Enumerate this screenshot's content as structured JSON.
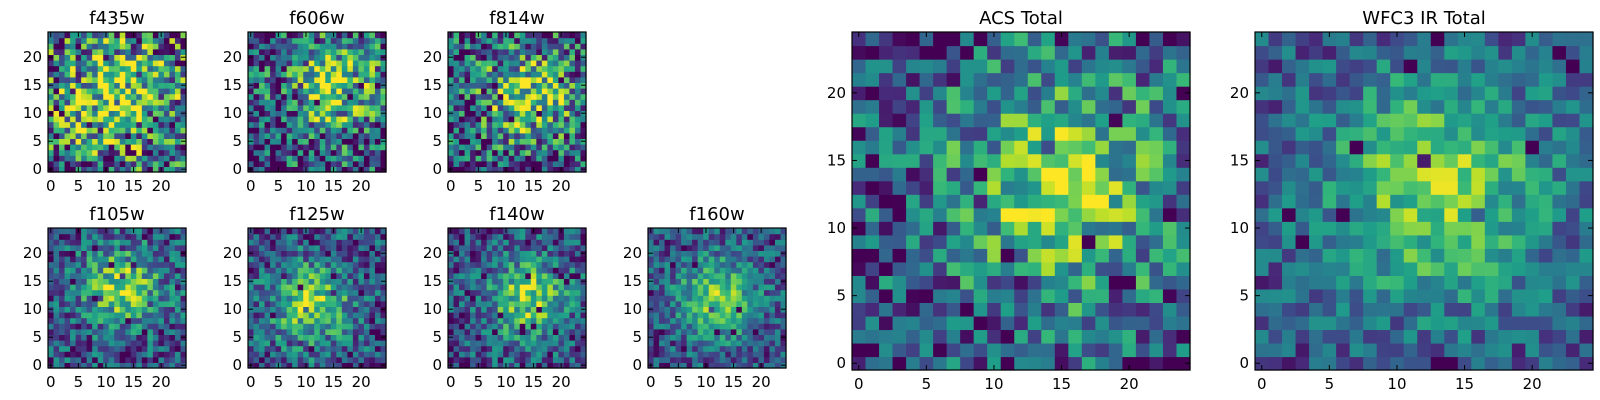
{
  "chart_data": [
    {
      "type": "heatmap",
      "title": "f435w",
      "colormap": "viridis",
      "shape": [
        25,
        25
      ],
      "xticks": [
        0,
        5,
        10,
        15,
        20
      ],
      "yticks": [
        0,
        5,
        10,
        15,
        20
      ],
      "xlim": [
        -0.5,
        24.5
      ],
      "ylim": [
        -0.5,
        24.5
      ],
      "center": [
        12,
        14
      ],
      "spread": 8,
      "noise": 0.55,
      "seed": 11
    },
    {
      "type": "heatmap",
      "title": "f606w",
      "colormap": "viridis",
      "shape": [
        25,
        25
      ],
      "xticks": [
        0,
        5,
        10,
        15,
        20
      ],
      "yticks": [
        0,
        5,
        10,
        15,
        20
      ],
      "xlim": [
        -0.5,
        24.5
      ],
      "ylim": [
        -0.5,
        24.5
      ],
      "center": [
        15,
        15
      ],
      "spread": 6,
      "noise": 0.45,
      "seed": 23
    },
    {
      "type": "heatmap",
      "title": "f814w",
      "colormap": "viridis",
      "shape": [
        25,
        25
      ],
      "xticks": [
        0,
        5,
        10,
        15,
        20
      ],
      "yticks": [
        0,
        5,
        10,
        15,
        20
      ],
      "xlim": [
        -0.5,
        24.5
      ],
      "ylim": [
        -0.5,
        24.5
      ],
      "center": [
        14,
        13
      ],
      "spread": 6,
      "noise": 0.45,
      "seed": 37
    },
    {
      "type": "heatmap",
      "title": "f105w",
      "colormap": "viridis",
      "shape": [
        25,
        25
      ],
      "xticks": [
        0,
        5,
        10,
        15,
        20
      ],
      "yticks": [
        0,
        5,
        10,
        15,
        20
      ],
      "xlim": [
        -0.5,
        24.5
      ],
      "ylim": [
        -0.5,
        24.5
      ],
      "center": [
        13,
        14
      ],
      "spread": 5,
      "noise": 0.3,
      "seed": 41
    },
    {
      "type": "heatmap",
      "title": "f125w",
      "colormap": "viridis",
      "shape": [
        25,
        25
      ],
      "xticks": [
        0,
        5,
        10,
        15,
        20
      ],
      "yticks": [
        0,
        5,
        10,
        15,
        20
      ],
      "xlim": [
        -0.5,
        24.5
      ],
      "ylim": [
        -0.5,
        24.5
      ],
      "center": [
        11,
        11
      ],
      "spread": 5,
      "noise": 0.3,
      "seed": 53
    },
    {
      "type": "heatmap",
      "title": "f140w",
      "colormap": "viridis",
      "shape": [
        25,
        25
      ],
      "xticks": [
        0,
        5,
        10,
        15,
        20
      ],
      "yticks": [
        0,
        5,
        10,
        15,
        20
      ],
      "xlim": [
        -0.5,
        24.5
      ],
      "ylim": [
        -0.5,
        24.5
      ],
      "center": [
        14,
        12
      ],
      "spread": 5,
      "noise": 0.28,
      "seed": 67
    },
    {
      "type": "heatmap",
      "title": "f160w",
      "colormap": "viridis",
      "shape": [
        25,
        25
      ],
      "xticks": [
        0,
        5,
        10,
        15,
        20
      ],
      "yticks": [
        0,
        5,
        10,
        15,
        20
      ],
      "xlim": [
        -0.5,
        24.5
      ],
      "ylim": [
        -0.5,
        24.5
      ],
      "center": [
        12,
        12
      ],
      "spread": 5,
      "noise": 0.25,
      "seed": 79
    },
    {
      "type": "heatmap",
      "title": "ACS Total",
      "colormap": "viridis",
      "shape": [
        25,
        25
      ],
      "xticks": [
        0,
        5,
        10,
        15,
        20
      ],
      "yticks": [
        0,
        5,
        10,
        15,
        20
      ],
      "xlim": [
        -0.5,
        24.5
      ],
      "ylim": [
        -0.5,
        24.5
      ],
      "center": [
        15,
        13
      ],
      "spread": 6,
      "noise": 0.35,
      "seed": 83
    },
    {
      "type": "heatmap",
      "title": "WFC3 IR Total",
      "colormap": "viridis",
      "shape": [
        25,
        25
      ],
      "xticks": [
        0,
        5,
        10,
        15,
        20
      ],
      "yticks": [
        0,
        5,
        10,
        15,
        20
      ],
      "xlim": [
        -0.5,
        24.5
      ],
      "ylim": [
        -0.5,
        24.5
      ],
      "center": [
        13,
        13
      ],
      "spread": 6,
      "noise": 0.22,
      "seed": 97
    }
  ]
}
